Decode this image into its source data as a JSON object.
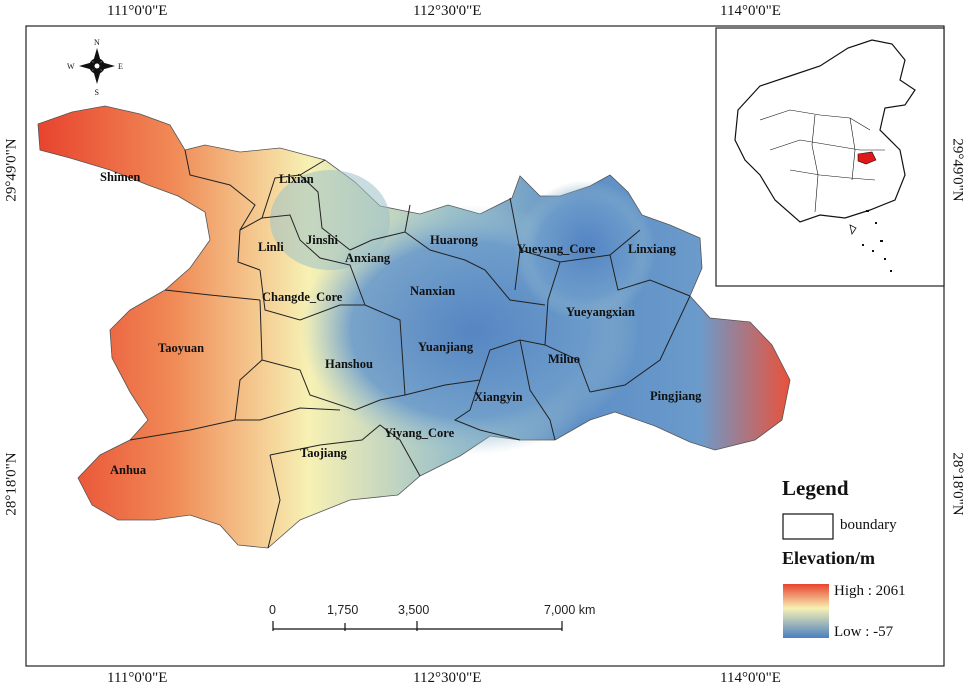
{
  "coordinates": {
    "top": [
      "111°0'0\"E",
      "112°30'0\"E",
      "114°0'0\"E"
    ],
    "bottom": [
      "111°0'0\"E",
      "112°30'0\"E",
      "114°0'0\"E"
    ],
    "left": [
      "29°49'0\"N",
      "28°18'0\"N"
    ],
    "right": [
      "29°49'0\"N",
      "28°18'0\"N"
    ]
  },
  "compass": {
    "n": "N",
    "s": "S",
    "e": "E",
    "w": "W"
  },
  "places": [
    "Shimen",
    "Lixian",
    "Linli",
    "Jinshi",
    "Anxiang",
    "Huarong",
    "Yueyang_Core",
    "Linxiang",
    "Changde_Core",
    "Nanxian",
    "Yueyangxian",
    "Taoyuan",
    "Hanshou",
    "Yuanjiang",
    "Miluo",
    "Pingjiang",
    "Xiangyin",
    "Yiyang_Core",
    "Taojiang",
    "Anhua"
  ],
  "legend": {
    "title": "Legend",
    "boundary_label": "boundary",
    "elevation_title": "Elevation/m",
    "high_label": "High : 2061",
    "low_label": "Low : -57",
    "colors": {
      "high": "#e8432e",
      "mid": "#f7f1b4",
      "low": "#4a7fc0"
    }
  },
  "scale_bar": {
    "labels": [
      "0",
      "1,750",
      "3,500",
      "7,000 km"
    ]
  },
  "inset": {
    "highlight_color": "#e01818"
  }
}
